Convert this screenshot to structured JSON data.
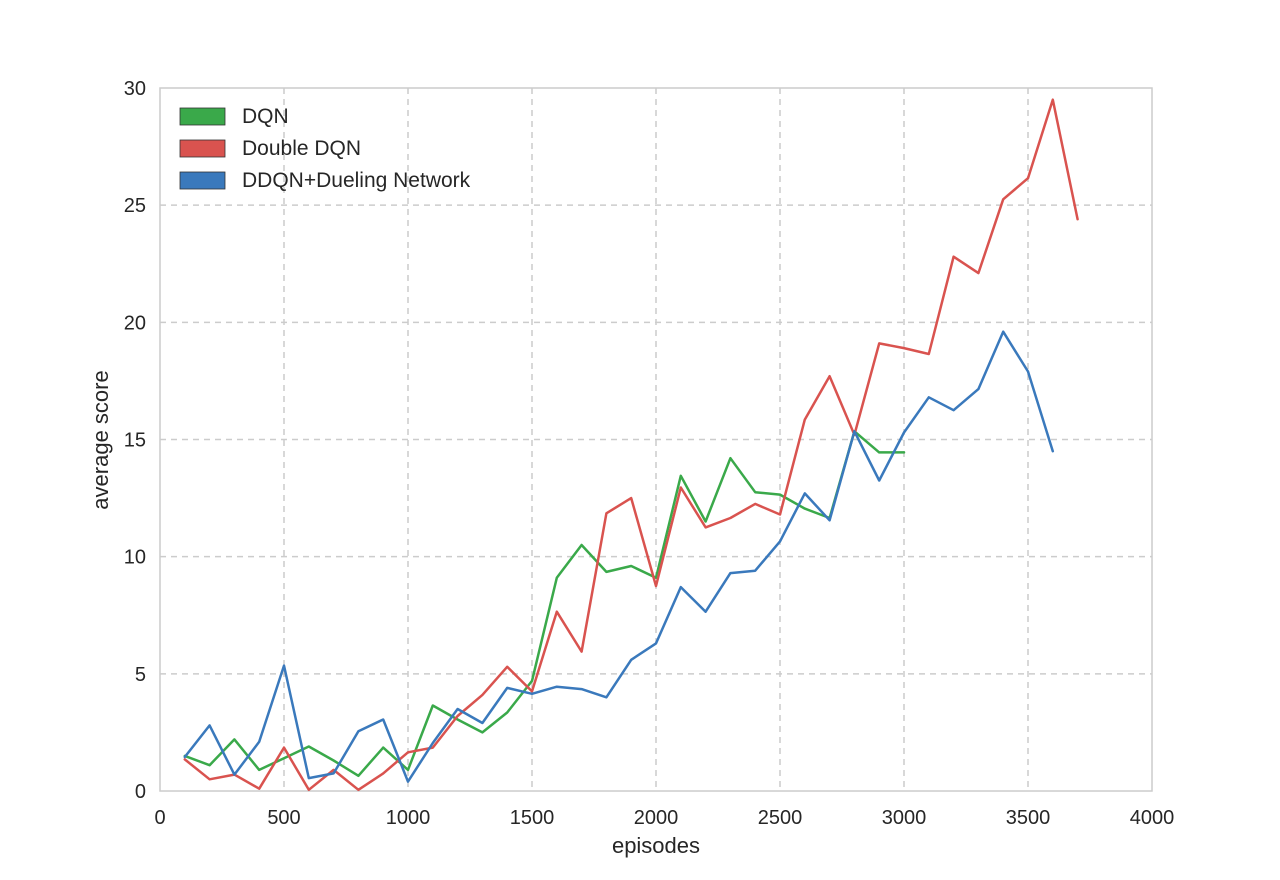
{
  "chart_data": {
    "type": "line",
    "title": "",
    "xlabel": "episodes",
    "ylabel": "average score",
    "xlim": [
      0,
      4000
    ],
    "ylim": [
      0,
      30
    ],
    "xticks": [
      "0",
      "500",
      "1000",
      "1500",
      "2000",
      "2500",
      "3000",
      "3500",
      "4000"
    ],
    "yticks": [
      "0",
      "5",
      "10",
      "15",
      "20",
      "25",
      "30"
    ],
    "xtick_values": [
      0,
      500,
      1000,
      1500,
      2000,
      2500,
      3000,
      3500,
      4000
    ],
    "ytick_values": [
      0,
      5,
      10,
      15,
      20,
      25,
      30
    ],
    "grid": true,
    "legend_position": "top-left",
    "series": [
      {
        "name": "DQN",
        "color": "#3aa94a",
        "x": [
          100,
          200,
          300,
          400,
          500,
          600,
          700,
          800,
          900,
          1000,
          1100,
          1200,
          1300,
          1400,
          1500,
          1600,
          1700,
          1800,
          1900,
          2000,
          2100,
          2200,
          2300,
          2400,
          2500,
          2600,
          2700,
          2800,
          2900,
          3000
        ],
        "y": [
          1.5,
          1.1,
          2.2,
          0.9,
          1.4,
          1.9,
          1.3,
          0.65,
          1.85,
          0.9,
          3.65,
          3.05,
          2.5,
          3.35,
          4.7,
          9.1,
          10.5,
          9.35,
          9.6,
          9.1,
          13.45,
          11.5,
          14.2,
          12.75,
          12.65,
          12.05,
          11.65,
          15.35,
          14.45,
          14.45
        ]
      },
      {
        "name": "Double DQN",
        "color": "#d9534f",
        "x": [
          100,
          200,
          300,
          400,
          500,
          600,
          700,
          800,
          900,
          1000,
          1100,
          1200,
          1300,
          1400,
          1500,
          1600,
          1700,
          1800,
          1900,
          2000,
          2100,
          2200,
          2300,
          2400,
          2500,
          2600,
          2700,
          2800,
          2900,
          3000,
          3100,
          3200,
          3300,
          3400,
          3500,
          3600,
          3700
        ],
        "y": [
          1.35,
          0.5,
          0.7,
          0.1,
          1.85,
          0.05,
          0.9,
          0.05,
          0.75,
          1.65,
          1.85,
          3.2,
          4.1,
          5.3,
          4.25,
          7.65,
          5.95,
          11.85,
          12.5,
          8.75,
          12.95,
          11.25,
          11.65,
          12.25,
          11.8,
          15.85,
          17.7,
          15.2,
          19.1,
          18.9,
          18.65,
          22.8,
          22.1,
          25.25,
          26.15,
          29.5,
          24.4
        ]
      },
      {
        "name": "DDQN+Dueling Network",
        "color": "#3a79bc",
        "x": [
          100,
          200,
          300,
          400,
          500,
          600,
          700,
          800,
          900,
          1000,
          1100,
          1200,
          1300,
          1400,
          1500,
          1600,
          1700,
          1800,
          1900,
          2000,
          2100,
          2200,
          2300,
          2400,
          2500,
          2600,
          2700,
          2800,
          2900,
          3000,
          3100,
          3200,
          3300,
          3400,
          3500,
          3600
        ],
        "y": [
          1.45,
          2.8,
          0.7,
          2.1,
          5.35,
          0.55,
          0.75,
          2.55,
          3.05,
          0.4,
          2.05,
          3.5,
          2.9,
          4.4,
          4.15,
          4.45,
          4.35,
          4.0,
          5.6,
          6.3,
          8.7,
          7.65,
          9.3,
          9.4,
          10.65,
          12.7,
          11.55,
          15.35,
          13.25,
          15.3,
          16.8,
          16.25,
          17.15,
          19.6,
          17.9,
          14.5
        ]
      }
    ]
  }
}
